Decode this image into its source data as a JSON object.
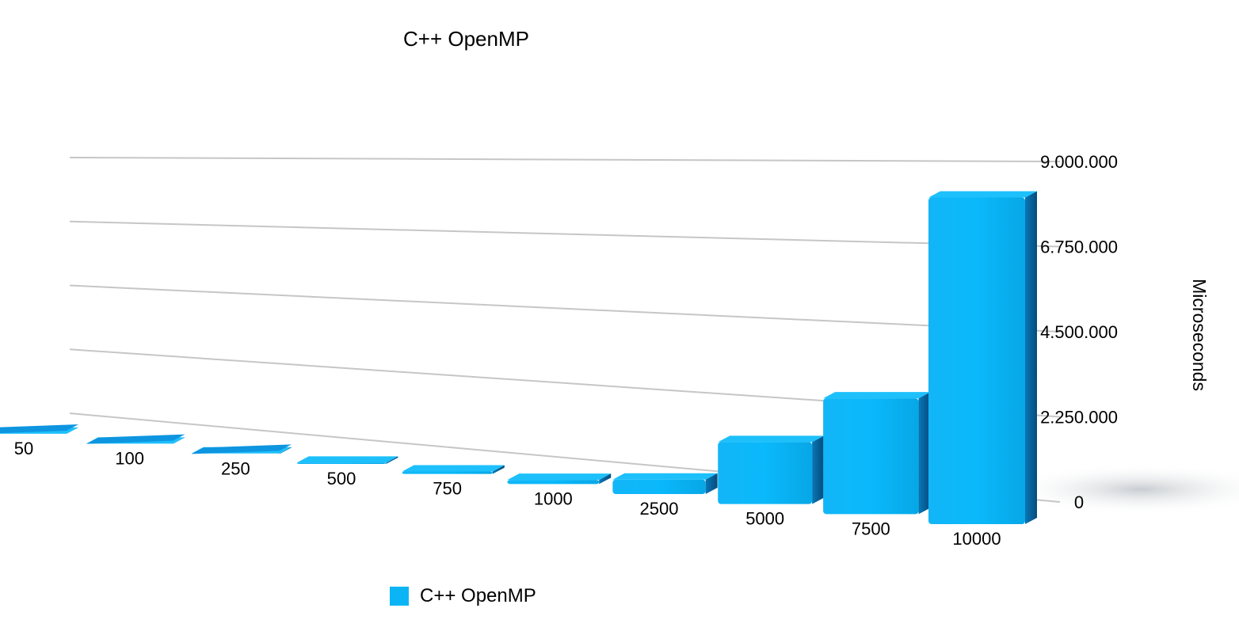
{
  "chart_data": {
    "type": "bar",
    "style": "3d",
    "title": "C++ OpenMP",
    "xlabel": "",
    "ylabel": "Microseconds",
    "y_axis_position": "right",
    "ylim": [
      0,
      9000000
    ],
    "yticks": [
      0,
      2250000,
      4500000,
      6750000,
      9000000
    ],
    "ytick_labels": [
      "0",
      "2.250.000",
      "4.500.000",
      "6.750.000",
      "9.000.000"
    ],
    "categories": [
      "50",
      "100",
      "250",
      "500",
      "750",
      "1000",
      "2500",
      "5000",
      "7500",
      "10000"
    ],
    "series": [
      {
        "name": "C++ OpenMP",
        "color": "#0bb4f5",
        "values": [
          2000,
          5000,
          12000,
          30000,
          60000,
          100000,
          350000,
          1500000,
          2800000,
          7900000
        ]
      }
    ],
    "grid": true,
    "legend": "bottom"
  }
}
